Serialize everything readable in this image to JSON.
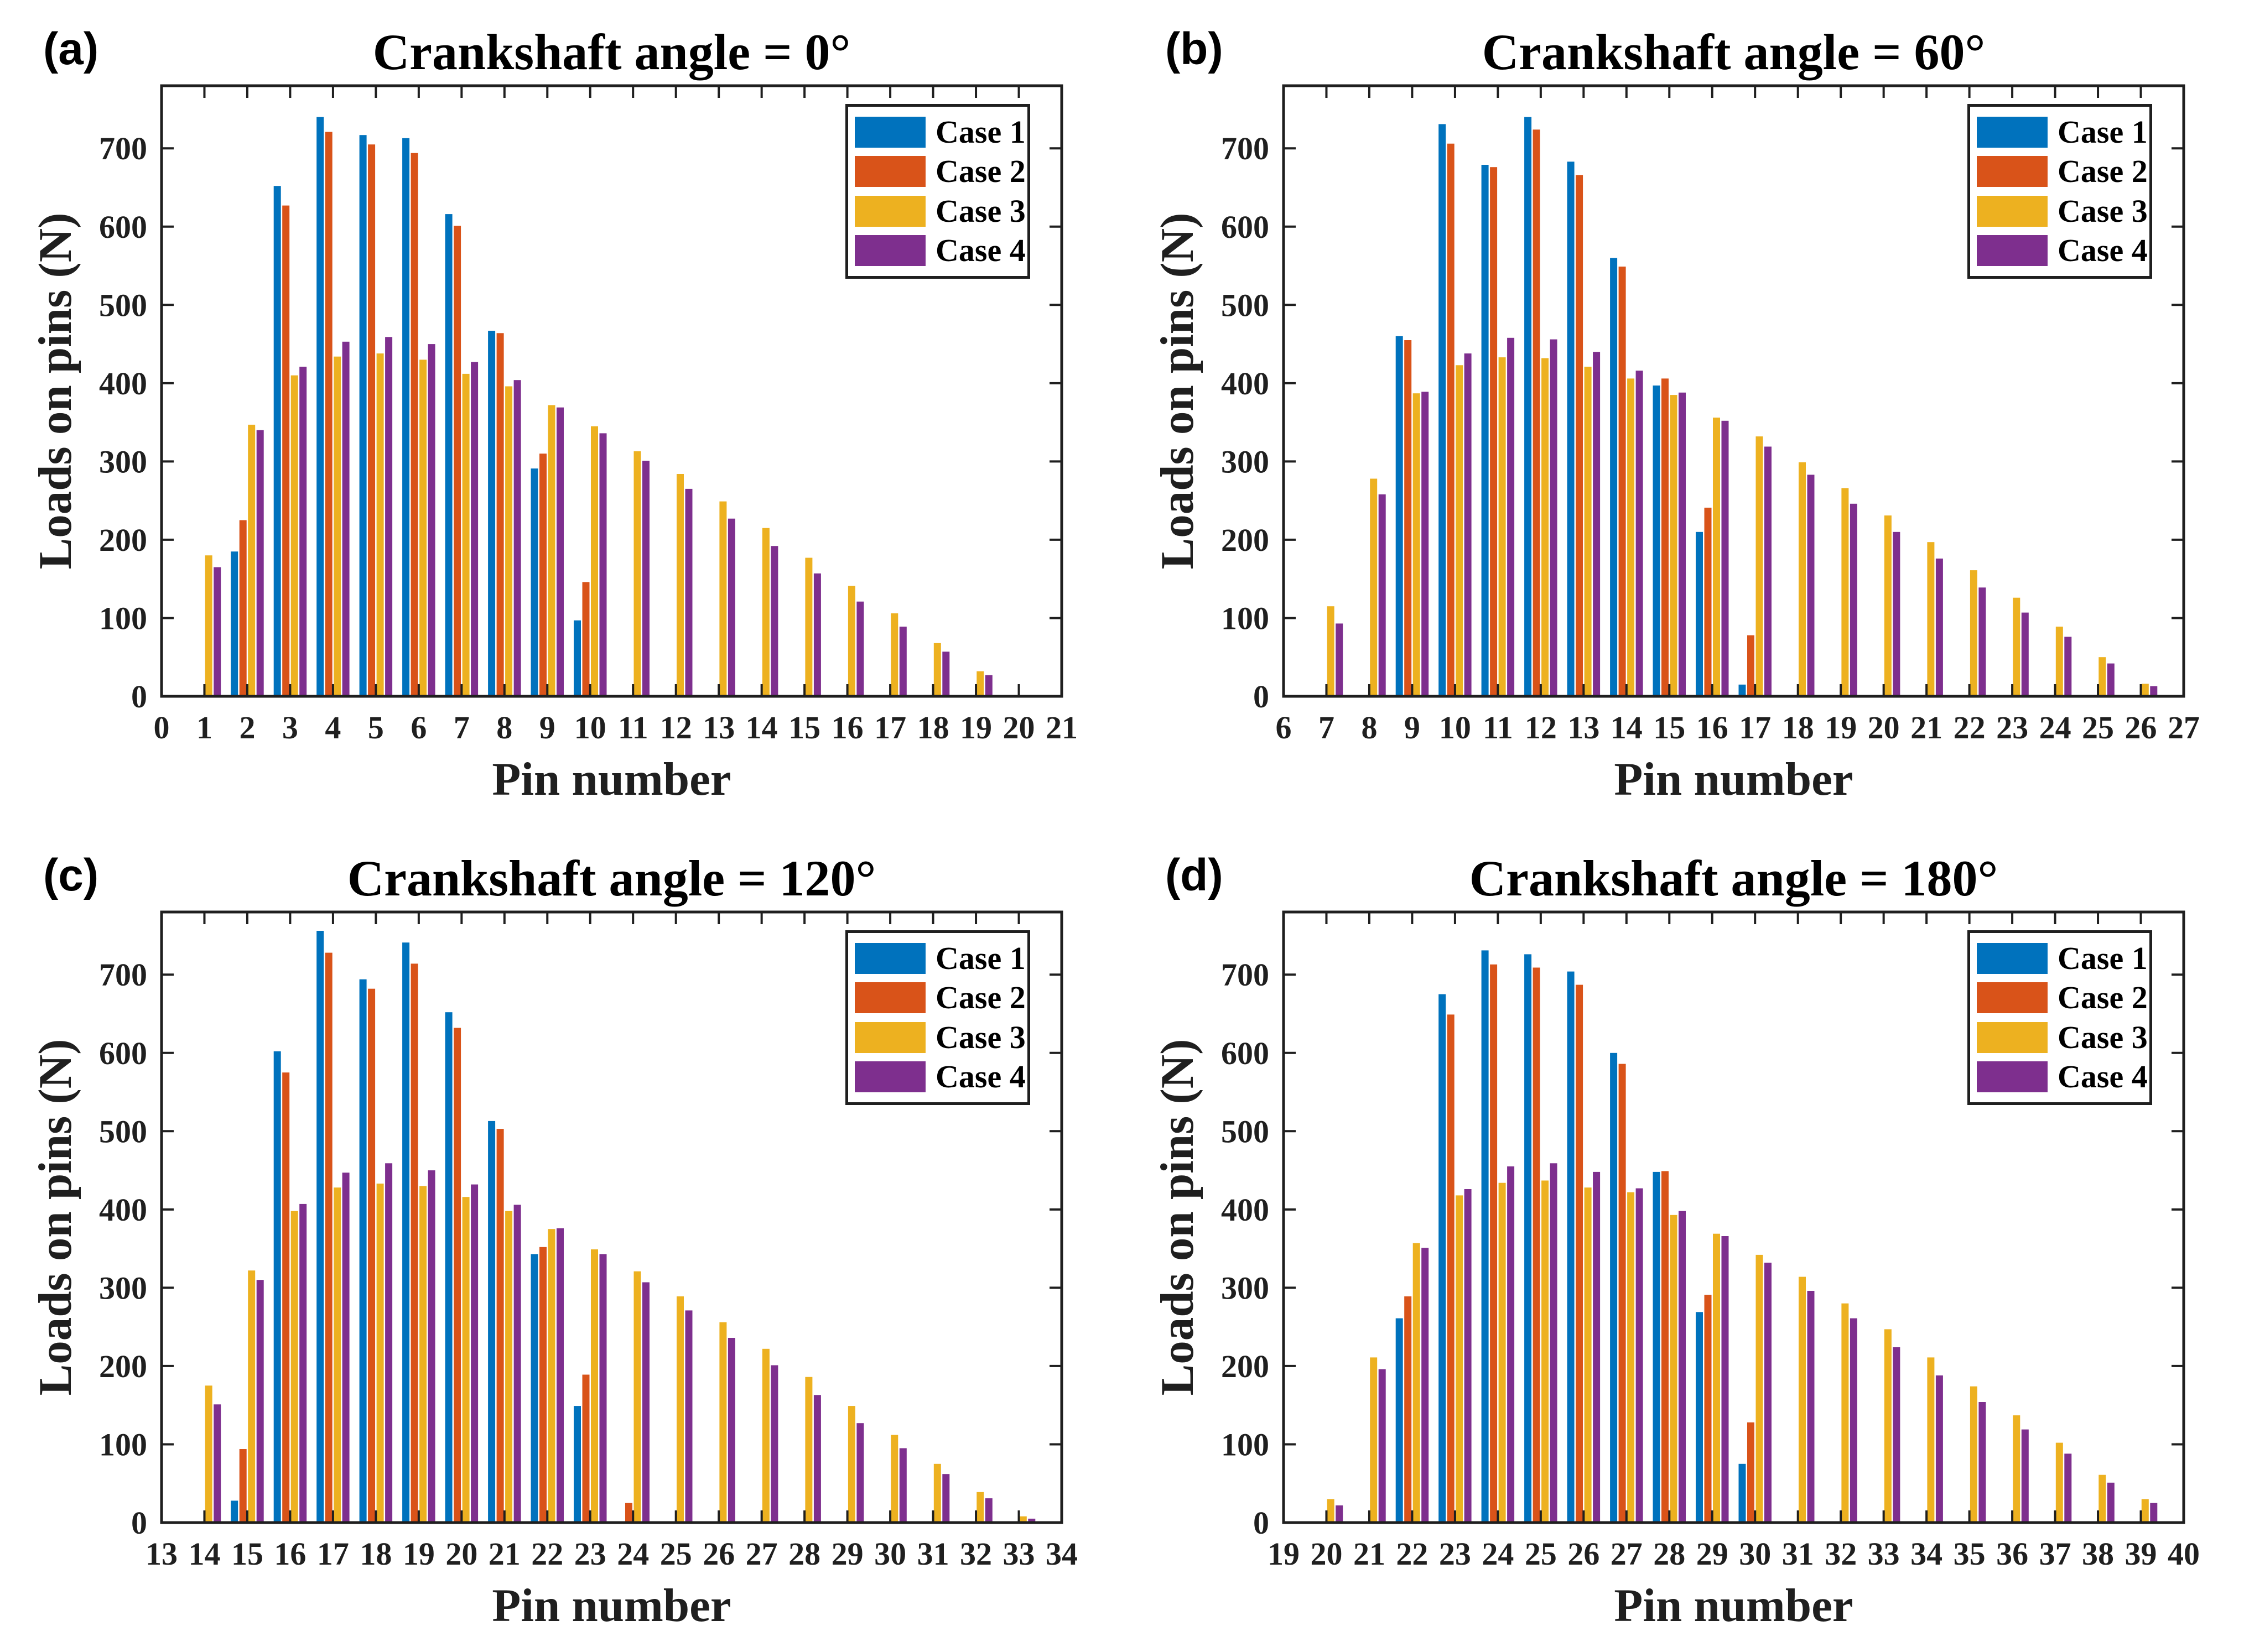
{
  "figure": {
    "background": "#ffffff",
    "axis_color": "#1f1f1f",
    "series_colors": [
      "#0072BD",
      "#D95319",
      "#EDB120",
      "#7E2F8E"
    ],
    "legend": {
      "position": "northeast-inside",
      "items": [
        {
          "label": "Case 1",
          "color": "#0072BD"
        },
        {
          "label": "Case 2",
          "color": "#D95319"
        },
        {
          "label": "Case 3",
          "color": "#EDB120"
        },
        {
          "label": "Case 4",
          "color": "#7E2F8E"
        }
      ]
    }
  },
  "chart_data": [
    {
      "type": "bar",
      "panel_label": "(a)",
      "title": "Crankshaft angle = 0°",
      "xlabel": "Pin number",
      "ylabel": "Loads on pins (N)",
      "grid": false,
      "box": true,
      "xlim": [
        0,
        21
      ],
      "ylim": [
        0,
        780
      ],
      "xticks": [
        0,
        1,
        2,
        3,
        4,
        5,
        6,
        7,
        8,
        9,
        10,
        11,
        12,
        13,
        14,
        15,
        16,
        17,
        18,
        19,
        20,
        21
      ],
      "yticks": [
        0,
        100,
        200,
        300,
        400,
        500,
        600,
        700
      ],
      "categories": [
        1,
        2,
        3,
        4,
        5,
        6,
        7,
        8,
        9,
        10,
        11,
        12,
        13,
        14,
        15,
        16,
        17,
        18,
        19
      ],
      "series": [
        {
          "name": "Case 1",
          "values": [
            0,
            185,
            652,
            740,
            717,
            713,
            616,
            467,
            291,
            97,
            0,
            0,
            0,
            0,
            0,
            0,
            0,
            0,
            0
          ]
        },
        {
          "name": "Case 2",
          "values": [
            0,
            225,
            627,
            721,
            705,
            694,
            601,
            464,
            310,
            146,
            0,
            0,
            0,
            0,
            0,
            0,
            0,
            0,
            0
          ]
        },
        {
          "name": "Case 3",
          "values": [
            180,
            347,
            410,
            434,
            438,
            430,
            412,
            396,
            372,
            345,
            313,
            284,
            249,
            215,
            177,
            141,
            106,
            68,
            32
          ]
        },
        {
          "name": "Case 4",
          "values": [
            165,
            340,
            421,
            453,
            459,
            450,
            427,
            404,
            369,
            336,
            301,
            265,
            227,
            192,
            157,
            121,
            89,
            57,
            27
          ]
        }
      ]
    },
    {
      "type": "bar",
      "panel_label": "(b)",
      "title": "Crankshaft angle = 60°",
      "xlabel": "Pin number",
      "ylabel": "Loads on pins (N)",
      "grid": false,
      "box": true,
      "xlim": [
        6,
        27
      ],
      "ylim": [
        0,
        780
      ],
      "xticks": [
        6,
        7,
        8,
        9,
        10,
        11,
        12,
        13,
        14,
        15,
        16,
        17,
        18,
        19,
        20,
        21,
        22,
        23,
        24,
        25,
        26,
        27
      ],
      "yticks": [
        0,
        100,
        200,
        300,
        400,
        500,
        600,
        700
      ],
      "categories": [
        7,
        8,
        9,
        10,
        11,
        12,
        13,
        14,
        15,
        16,
        17,
        18,
        19,
        20,
        21,
        22,
        23,
        24,
        25,
        26
      ],
      "series": [
        {
          "name": "Case 1",
          "values": [
            0,
            0,
            460,
            731,
            679,
            740,
            683,
            560,
            397,
            210,
            15,
            0,
            0,
            0,
            0,
            0,
            0,
            0,
            0,
            0
          ]
        },
        {
          "name": "Case 2",
          "values": [
            0,
            0,
            455,
            706,
            676,
            724,
            666,
            549,
            406,
            241,
            78,
            0,
            0,
            0,
            0,
            0,
            0,
            0,
            0,
            0
          ]
        },
        {
          "name": "Case 3",
          "values": [
            115,
            278,
            387,
            423,
            433,
            432,
            421,
            406,
            385,
            356,
            332,
            299,
            266,
            231,
            197,
            161,
            126,
            89,
            50,
            16
          ]
        },
        {
          "name": "Case 4",
          "values": [
            93,
            258,
            389,
            438,
            458,
            456,
            440,
            416,
            388,
            352,
            319,
            283,
            246,
            210,
            176,
            139,
            107,
            76,
            42,
            13
          ]
        }
      ]
    },
    {
      "type": "bar",
      "panel_label": "(c)",
      "title": "Crankshaft angle = 120°",
      "xlabel": "Pin number",
      "ylabel": "Loads on pins (N)",
      "grid": false,
      "box": true,
      "xlim": [
        13,
        34
      ],
      "ylim": [
        0,
        780
      ],
      "xticks": [
        13,
        14,
        15,
        16,
        17,
        18,
        19,
        20,
        21,
        22,
        23,
        24,
        25,
        26,
        27,
        28,
        29,
        30,
        31,
        32,
        33,
        34
      ],
      "yticks": [
        0,
        100,
        200,
        300,
        400,
        500,
        600,
        700
      ],
      "categories": [
        14,
        15,
        16,
        17,
        18,
        19,
        20,
        21,
        22,
        23,
        24,
        25,
        26,
        27,
        28,
        29,
        30,
        31,
        32,
        33
      ],
      "series": [
        {
          "name": "Case 1",
          "values": [
            0,
            28,
            602,
            756,
            694,
            741,
            652,
            513,
            343,
            149,
            0,
            0,
            0,
            0,
            0,
            0,
            0,
            0,
            0,
            0
          ]
        },
        {
          "name": "Case 2",
          "values": [
            0,
            94,
            575,
            728,
            682,
            714,
            632,
            503,
            352,
            189,
            25,
            0,
            0,
            0,
            0,
            0,
            0,
            0,
            0,
            0
          ]
        },
        {
          "name": "Case 3",
          "values": [
            175,
            322,
            398,
            428,
            433,
            430,
            416,
            398,
            375,
            349,
            321,
            289,
            256,
            222,
            186,
            149,
            112,
            75,
            39,
            8
          ]
        },
        {
          "name": "Case 4",
          "values": [
            151,
            310,
            407,
            447,
            459,
            450,
            432,
            406,
            376,
            343,
            307,
            271,
            236,
            201,
            163,
            127,
            95,
            62,
            31,
            5
          ]
        }
      ]
    },
    {
      "type": "bar",
      "panel_label": "(d)",
      "title": "Crankshaft angle = 180°",
      "xlabel": "Pin number",
      "ylabel": "Loads on pins (N)",
      "grid": false,
      "box": true,
      "xlim": [
        19,
        40
      ],
      "ylim": [
        0,
        780
      ],
      "xticks": [
        19,
        20,
        21,
        22,
        23,
        24,
        25,
        26,
        27,
        28,
        29,
        30,
        31,
        32,
        33,
        34,
        35,
        36,
        37,
        38,
        39,
        40
      ],
      "yticks": [
        0,
        100,
        200,
        300,
        400,
        500,
        600,
        700
      ],
      "categories": [
        20,
        21,
        22,
        23,
        24,
        25,
        26,
        27,
        28,
        29,
        30,
        31,
        32,
        33,
        34,
        35,
        36,
        37,
        38,
        39
      ],
      "series": [
        {
          "name": "Case 1",
          "values": [
            0,
            0,
            261,
            675,
            731,
            726,
            704,
            600,
            448,
            269,
            75,
            0,
            0,
            0,
            0,
            0,
            0,
            0,
            0,
            0
          ]
        },
        {
          "name": "Case 2",
          "values": [
            0,
            0,
            289,
            649,
            713,
            709,
            687,
            586,
            449,
            291,
            128,
            0,
            0,
            0,
            0,
            0,
            0,
            0,
            0,
            0
          ]
        },
        {
          "name": "Case 3",
          "values": [
            30,
            211,
            357,
            418,
            434,
            437,
            428,
            422,
            393,
            369,
            342,
            314,
            280,
            247,
            211,
            174,
            137,
            102,
            61,
            30
          ]
        },
        {
          "name": "Case 4",
          "values": [
            22,
            196,
            351,
            426,
            455,
            459,
            448,
            427,
            398,
            366,
            332,
            296,
            261,
            224,
            188,
            154,
            119,
            88,
            51,
            25
          ]
        }
      ]
    }
  ]
}
